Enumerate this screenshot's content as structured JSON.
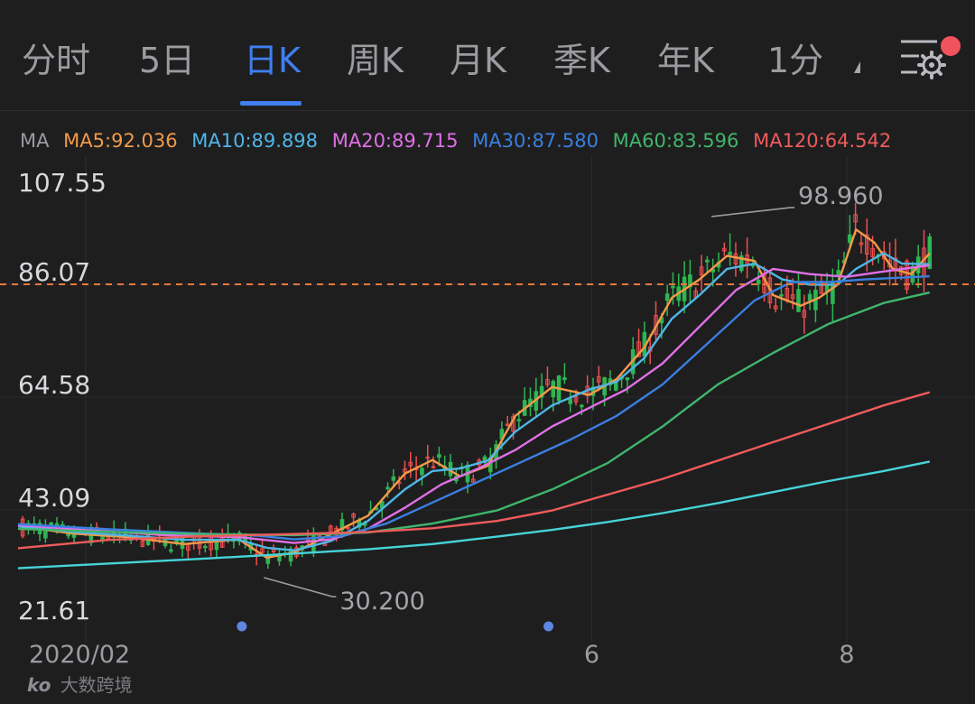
{
  "tabs": [
    {
      "label": "分时",
      "active": false
    },
    {
      "label": "5日",
      "active": false
    },
    {
      "label": "日K",
      "active": true
    },
    {
      "label": "周K",
      "active": false
    },
    {
      "label": "月K",
      "active": false
    },
    {
      "label": "季K",
      "active": false
    },
    {
      "label": "年K",
      "active": false
    },
    {
      "label": "1分",
      "active": false
    }
  ],
  "icons": {
    "dropdown": "dropdown-arrow-icon",
    "settings": "settings-menu-icon",
    "notification": "notification-dot"
  },
  "ma_legend": {
    "label": "MA",
    "items": [
      {
        "text": "MA5:92.036",
        "color": "#f29a48"
      },
      {
        "text": "MA10:89.898",
        "color": "#4fb6e6"
      },
      {
        "text": "MA20:89.715",
        "color": "#e070e6"
      },
      {
        "text": "MA30:87.580",
        "color": "#3a7fe0"
      },
      {
        "text": "MA60:83.596",
        "color": "#3fb66b"
      },
      {
        "text": "MA120:64.542",
        "color": "#ef5b5b"
      }
    ]
  },
  "colors": {
    "up": "#ef4f4f",
    "down": "#2fb552",
    "dashed_price": "#e9783a",
    "accent": "#3f7ff0"
  },
  "chart_data": {
    "type": "candlestick",
    "ylim": [
      21.61,
      107.55
    ],
    "y_ticks": [
      "107.55",
      "86.07",
      "64.58",
      "43.09",
      "21.61"
    ],
    "x_ticks": [
      {
        "label": "2020/02",
        "t": 0.0
      },
      {
        "label": "6",
        "t": 0.623
      },
      {
        "label": "8",
        "t": 0.9
      }
    ],
    "dashed_line_value": 86.07,
    "annotations": [
      {
        "label": "98.960",
        "value": 98.96,
        "t": 0.753,
        "type": "high"
      },
      {
        "label": "30.200",
        "value": 30.2,
        "t": 0.267,
        "type": "low"
      }
    ],
    "event_markers": [
      0.243,
      0.576
    ],
    "ma_series": [
      {
        "name": "MA5",
        "color": "#f29a48",
        "points": [
          [
            0,
            40
          ],
          [
            0.06,
            38.6
          ],
          [
            0.12,
            37.9
          ],
          [
            0.18,
            36.6
          ],
          [
            0.24,
            37.5
          ],
          [
            0.27,
            34
          ],
          [
            0.3,
            35
          ],
          [
            0.34,
            38.5
          ],
          [
            0.38,
            42
          ],
          [
            0.42,
            50
          ],
          [
            0.45,
            52.6
          ],
          [
            0.48,
            49.5
          ],
          [
            0.51,
            51.5
          ],
          [
            0.54,
            61
          ],
          [
            0.58,
            66.5
          ],
          [
            0.62,
            65
          ],
          [
            0.65,
            68
          ],
          [
            0.68,
            74
          ],
          [
            0.71,
            83.5
          ],
          [
            0.74,
            87
          ],
          [
            0.77,
            91.5
          ],
          [
            0.8,
            90.5
          ],
          [
            0.82,
            84
          ],
          [
            0.85,
            82
          ],
          [
            0.87,
            83.5
          ],
          [
            0.89,
            86
          ],
          [
            0.91,
            96.5
          ],
          [
            0.93,
            94
          ],
          [
            0.95,
            89
          ],
          [
            0.97,
            88
          ],
          [
            0.99,
            92
          ]
        ]
      },
      {
        "name": "MA10",
        "color": "#4fb6e6",
        "points": [
          [
            0,
            40
          ],
          [
            0.06,
            38.9
          ],
          [
            0.12,
            38.2
          ],
          [
            0.18,
            37.4
          ],
          [
            0.24,
            37.4
          ],
          [
            0.27,
            35.9
          ],
          [
            0.3,
            35.4
          ],
          [
            0.34,
            37.2
          ],
          [
            0.38,
            41
          ],
          [
            0.42,
            47
          ],
          [
            0.45,
            50.5
          ],
          [
            0.48,
            51
          ],
          [
            0.51,
            52.5
          ],
          [
            0.54,
            58
          ],
          [
            0.58,
            63
          ],
          [
            0.62,
            66
          ],
          [
            0.65,
            67.5
          ],
          [
            0.68,
            72
          ],
          [
            0.71,
            79.5
          ],
          [
            0.74,
            84
          ],
          [
            0.77,
            89
          ],
          [
            0.8,
            90
          ],
          [
            0.83,
            87
          ],
          [
            0.86,
            86
          ],
          [
            0.89,
            86
          ],
          [
            0.91,
            89
          ],
          [
            0.94,
            92
          ],
          [
            0.96,
            90
          ],
          [
            0.99,
            89.9
          ]
        ]
      },
      {
        "name": "MA20",
        "color": "#e070e6",
        "points": [
          [
            0,
            40.2
          ],
          [
            0.08,
            39.2
          ],
          [
            0.16,
            38.3
          ],
          [
            0.24,
            37.9
          ],
          [
            0.3,
            36.8
          ],
          [
            0.34,
            37.5
          ],
          [
            0.38,
            39.5
          ],
          [
            0.42,
            43.5
          ],
          [
            0.46,
            48
          ],
          [
            0.5,
            51
          ],
          [
            0.54,
            54.5
          ],
          [
            0.58,
            59
          ],
          [
            0.62,
            62.5
          ],
          [
            0.66,
            66
          ],
          [
            0.7,
            71
          ],
          [
            0.74,
            78
          ],
          [
            0.78,
            85
          ],
          [
            0.82,
            89
          ],
          [
            0.86,
            88
          ],
          [
            0.9,
            87.5
          ],
          [
            0.94,
            88.5
          ],
          [
            0.99,
            89.7
          ]
        ]
      },
      {
        "name": "MA30",
        "color": "#3a7fe0",
        "points": [
          [
            0,
            40.4
          ],
          [
            0.1,
            39.4
          ],
          [
            0.2,
            38.6
          ],
          [
            0.26,
            38.2
          ],
          [
            0.3,
            37.5
          ],
          [
            0.35,
            38.1
          ],
          [
            0.4,
            40.5
          ],
          [
            0.45,
            44.5
          ],
          [
            0.5,
            48.5
          ],
          [
            0.55,
            52.5
          ],
          [
            0.6,
            56.5
          ],
          [
            0.65,
            61
          ],
          [
            0.7,
            67
          ],
          [
            0.75,
            75
          ],
          [
            0.8,
            83
          ],
          [
            0.84,
            86.5
          ],
          [
            0.88,
            86.5
          ],
          [
            0.92,
            87
          ],
          [
            0.99,
            87.6
          ]
        ]
      },
      {
        "name": "MA60",
        "color": "#3fb66b",
        "points": [
          [
            0,
            39.5
          ],
          [
            0.1,
            38.9
          ],
          [
            0.2,
            38.5
          ],
          [
            0.3,
            38.3
          ],
          [
            0.38,
            38.8
          ],
          [
            0.45,
            40.5
          ],
          [
            0.52,
            43
          ],
          [
            0.58,
            47
          ],
          [
            0.64,
            52
          ],
          [
            0.7,
            59
          ],
          [
            0.76,
            67
          ],
          [
            0.82,
            73
          ],
          [
            0.88,
            78.5
          ],
          [
            0.94,
            82.5
          ],
          [
            0.99,
            84.5
          ]
        ]
      },
      {
        "name": "MA120",
        "color": "#ef5b5b",
        "points": [
          [
            0,
            35.8
          ],
          [
            0.1,
            37.4
          ],
          [
            0.2,
            38.1
          ],
          [
            0.3,
            38.5
          ],
          [
            0.38,
            38.9
          ],
          [
            0.45,
            39.6
          ],
          [
            0.52,
            41
          ],
          [
            0.58,
            43
          ],
          [
            0.64,
            46
          ],
          [
            0.7,
            49
          ],
          [
            0.76,
            52.5
          ],
          [
            0.82,
            56
          ],
          [
            0.88,
            59.5
          ],
          [
            0.94,
            63
          ],
          [
            0.99,
            65.5
          ]
        ]
      },
      {
        "name": "",
        "color": "#46d4d8",
        "points": [
          [
            0,
            32
          ],
          [
            0.1,
            32.9
          ],
          [
            0.2,
            33.8
          ],
          [
            0.3,
            34.8
          ],
          [
            0.38,
            35.6
          ],
          [
            0.45,
            36.6
          ],
          [
            0.52,
            38
          ],
          [
            0.58,
            39.3
          ],
          [
            0.64,
            40.8
          ],
          [
            0.7,
            42.5
          ],
          [
            0.76,
            44.4
          ],
          [
            0.82,
            46.5
          ],
          [
            0.88,
            48.6
          ],
          [
            0.94,
            50.5
          ],
          [
            0.99,
            52.3
          ]
        ]
      }
    ]
  },
  "watermark": {
    "logo": "ko",
    "text": "大数跨境"
  }
}
